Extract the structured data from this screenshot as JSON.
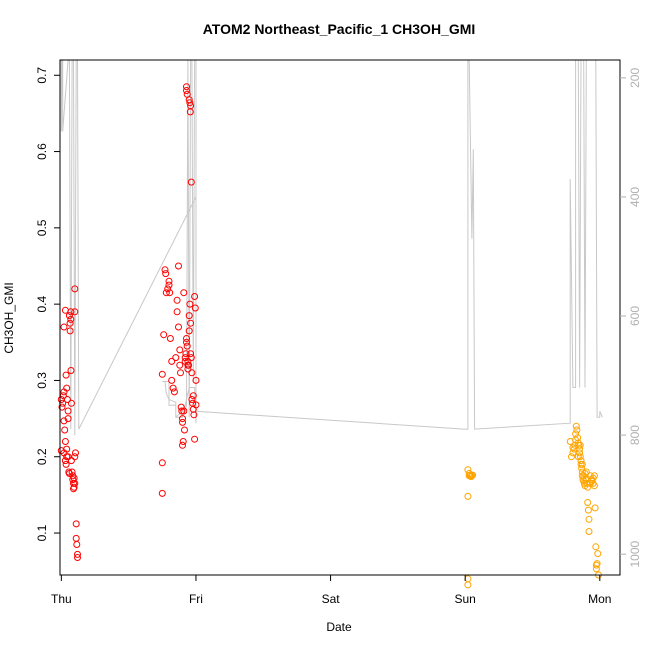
{
  "chart_data": {
    "type": "scatter",
    "title": "ATOM2 Northeast_Pacific_1 CH3OH_GMI",
    "xlabel": "Date",
    "ylabel": "CH3OH_GMI",
    "x_ticks": [
      "Thu",
      "Fri",
      "Sat",
      "Sun",
      "Mon"
    ],
    "y_ticks": [
      "0.1",
      "0.2",
      "0.3",
      "0.4",
      "0.5",
      "0.6",
      "0.7"
    ],
    "y_right_ticks": [
      "200",
      "400",
      "600",
      "800",
      "1000"
    ],
    "xlim": [
      -0.01,
      4.15
    ],
    "ylim": [
      0.045,
      0.72
    ],
    "y_right_lim": [
      1035,
      170
    ],
    "y_right_reversed": true,
    "colors": {
      "series_red": "#ff0000",
      "series_orange": "#ffa500",
      "pressure_line": "#c8c8c8",
      "axis": "#000000",
      "right_axis": "#b0b0b0"
    },
    "series": [
      {
        "color": "series_red",
        "points": [
          [
            0.0,
            0.275
          ],
          [
            0.01,
            0.27
          ],
          [
            0.02,
            0.285
          ],
          [
            0.005,
            0.265
          ],
          [
            0.015,
            0.28
          ],
          [
            0.0,
            0.208
          ],
          [
            0.02,
            0.205
          ],
          [
            0.02,
            0.247
          ],
          [
            0.025,
            0.235
          ],
          [
            0.03,
            0.22
          ],
          [
            0.03,
            0.195
          ],
          [
            0.035,
            0.19
          ],
          [
            0.04,
            0.2
          ],
          [
            0.04,
            0.21
          ],
          [
            0.02,
            0.37
          ],
          [
            0.03,
            0.392
          ],
          [
            0.035,
            0.307
          ],
          [
            0.04,
            0.29
          ],
          [
            0.045,
            0.275
          ],
          [
            0.05,
            0.26
          ],
          [
            0.05,
            0.25
          ],
          [
            0.05,
            0.2
          ],
          [
            0.055,
            0.18
          ],
          [
            0.06,
            0.178
          ],
          [
            0.06,
            0.385
          ],
          [
            0.065,
            0.375
          ],
          [
            0.065,
            0.365
          ],
          [
            0.07,
            0.38
          ],
          [
            0.07,
            0.39
          ],
          [
            0.072,
            0.313
          ],
          [
            0.075,
            0.27
          ],
          [
            0.075,
            0.195
          ],
          [
            0.08,
            0.18
          ],
          [
            0.085,
            0.175
          ],
          [
            0.085,
            0.17
          ],
          [
            0.09,
            0.165
          ],
          [
            0.09,
            0.158
          ],
          [
            0.095,
            0.172
          ],
          [
            0.1,
            0.165
          ],
          [
            0.1,
            0.2
          ],
          [
            0.105,
            0.205
          ],
          [
            0.1,
            0.39
          ],
          [
            0.1,
            0.42
          ],
          [
            0.11,
            0.112
          ],
          [
            0.11,
            0.093
          ],
          [
            0.115,
            0.085
          ],
          [
            0.12,
            0.072
          ],
          [
            0.12,
            0.068
          ],
          [
            0.095,
            0.16
          ],
          [
            0.75,
            0.308
          ],
          [
            0.75,
            0.192
          ],
          [
            0.75,
            0.152
          ],
          [
            0.76,
            0.36
          ],
          [
            0.77,
            0.445
          ],
          [
            0.775,
            0.44
          ],
          [
            0.78,
            0.415
          ],
          [
            0.79,
            0.42
          ],
          [
            0.8,
            0.43
          ],
          [
            0.8,
            0.425
          ],
          [
            0.805,
            0.415
          ],
          [
            0.81,
            0.355
          ],
          [
            0.82,
            0.325
          ],
          [
            0.82,
            0.3
          ],
          [
            0.83,
            0.29
          ],
          [
            0.84,
            0.285
          ],
          [
            0.85,
            0.33
          ],
          [
            0.86,
            0.405
          ],
          [
            0.86,
            0.39
          ],
          [
            0.87,
            0.45
          ],
          [
            0.87,
            0.37
          ],
          [
            0.88,
            0.34
          ],
          [
            0.88,
            0.32
          ],
          [
            0.885,
            0.31
          ],
          [
            0.89,
            0.265
          ],
          [
            0.895,
            0.26
          ],
          [
            0.9,
            0.25
          ],
          [
            0.9,
            0.245
          ],
          [
            0.9,
            0.215
          ],
          [
            0.905,
            0.22
          ],
          [
            0.91,
            0.415
          ],
          [
            0.91,
            0.26
          ],
          [
            0.915,
            0.235
          ],
          [
            0.92,
            0.33
          ],
          [
            0.92,
            0.325
          ],
          [
            0.925,
            0.335
          ],
          [
            0.93,
            0.355
          ],
          [
            0.93,
            0.35
          ],
          [
            0.935,
            0.345
          ],
          [
            0.94,
            0.32
          ],
          [
            0.94,
            0.315
          ],
          [
            0.945,
            0.32
          ],
          [
            0.95,
            0.365
          ],
          [
            0.95,
            0.385
          ],
          [
            0.955,
            0.4
          ],
          [
            0.96,
            0.375
          ],
          [
            0.96,
            0.335
          ],
          [
            0.965,
            0.33
          ],
          [
            0.97,
            0.31
          ],
          [
            0.97,
            0.275
          ],
          [
            0.975,
            0.27
          ],
          [
            0.98,
            0.28
          ],
          [
            0.98,
            0.262
          ],
          [
            0.985,
            0.255
          ],
          [
            0.99,
            0.223
          ],
          [
            0.99,
            0.41
          ],
          [
            0.995,
            0.395
          ],
          [
            1.0,
            0.3
          ],
          [
            1.0,
            0.268
          ],
          [
            0.93,
            0.685
          ],
          [
            0.93,
            0.68
          ],
          [
            0.935,
            0.675
          ],
          [
            0.95,
            0.668
          ],
          [
            0.955,
            0.664
          ],
          [
            0.96,
            0.66
          ],
          [
            0.958,
            0.652
          ],
          [
            0.965,
            0.56
          ],
          [
            0.94,
            0.325
          ]
        ]
      },
      {
        "color": "series_orange",
        "points": [
          [
            3.02,
            0.183
          ],
          [
            3.03,
            0.178
          ],
          [
            3.035,
            0.175
          ],
          [
            3.04,
            0.176
          ],
          [
            3.045,
            0.174
          ],
          [
            3.05,
            0.175
          ],
          [
            3.055,
            0.176
          ],
          [
            3.03,
            0.175
          ],
          [
            3.035,
            0.176
          ],
          [
            3.02,
            0.148
          ],
          [
            3.02,
            0.04
          ],
          [
            3.02,
            0.032
          ],
          [
            3.78,
            0.22
          ],
          [
            3.79,
            0.2
          ],
          [
            3.8,
            0.205
          ],
          [
            3.81,
            0.21
          ],
          [
            3.82,
            0.222
          ],
          [
            3.82,
            0.23
          ],
          [
            3.825,
            0.24
          ],
          [
            3.83,
            0.235
          ],
          [
            3.835,
            0.225
          ],
          [
            3.84,
            0.218
          ],
          [
            3.845,
            0.215
          ],
          [
            3.85,
            0.21
          ],
          [
            3.855,
            0.2
          ],
          [
            3.86,
            0.195
          ],
          [
            3.86,
            0.19
          ],
          [
            3.865,
            0.185
          ],
          [
            3.87,
            0.18
          ],
          [
            3.87,
            0.175
          ],
          [
            3.875,
            0.17
          ],
          [
            3.88,
            0.175
          ],
          [
            3.88,
            0.168
          ],
          [
            3.885,
            0.165
          ],
          [
            3.89,
            0.178
          ],
          [
            3.89,
            0.162
          ],
          [
            3.895,
            0.17
          ],
          [
            3.9,
            0.172
          ],
          [
            3.9,
            0.18
          ],
          [
            3.905,
            0.165
          ],
          [
            3.91,
            0.16
          ],
          [
            3.91,
            0.14
          ],
          [
            3.915,
            0.13
          ],
          [
            3.92,
            0.118
          ],
          [
            3.92,
            0.102
          ],
          [
            3.93,
            0.175
          ],
          [
            3.93,
            0.165
          ],
          [
            3.94,
            0.17
          ],
          [
            3.94,
            0.168
          ],
          [
            3.95,
            0.172
          ],
          [
            3.95,
            0.165
          ],
          [
            3.96,
            0.175
          ],
          [
            3.96,
            0.162
          ],
          [
            3.965,
            0.133
          ],
          [
            3.97,
            0.082
          ],
          [
            3.975,
            0.058
          ],
          [
            3.975,
            0.053
          ],
          [
            3.98,
            0.06
          ],
          [
            3.985,
            0.073
          ],
          [
            3.99,
            0.045
          ],
          [
            3.8,
            0.212
          ],
          [
            3.815,
            0.215
          ],
          [
            3.84,
            0.2
          ],
          [
            3.85,
            0.205
          ],
          [
            3.855,
            0.215
          ],
          [
            3.87,
            0.19
          ]
        ]
      }
    ],
    "pressure_line": [
      [
        0.0,
        170
      ],
      [
        0.0,
        290
      ],
      [
        0.005,
        170
      ],
      [
        0.01,
        170
      ],
      [
        0.01,
        290
      ],
      [
        0.05,
        170
      ],
      [
        0.06,
        170
      ],
      [
        0.07,
        790
      ],
      [
        0.08,
        170
      ],
      [
        0.09,
        170
      ],
      [
        0.1,
        800
      ],
      [
        0.11,
        170
      ],
      [
        0.12,
        170
      ],
      [
        0.13,
        790
      ],
      [
        1.0,
        400
      ],
      [
        1.0,
        170
      ],
      [
        0.99,
        170
      ],
      [
        0.98,
        710
      ],
      [
        0.97,
        170
      ],
      [
        0.96,
        170
      ],
      [
        0.95,
        770
      ],
      [
        0.94,
        170
      ],
      [
        0.93,
        750
      ],
      [
        0.92,
        760
      ],
      [
        0.9,
        760
      ],
      [
        0.85,
        770
      ],
      [
        0.85,
        750
      ],
      [
        0.8,
        750
      ],
      [
        0.8,
        710
      ],
      [
        0.75,
        710
      ],
      [
        0.77,
        710
      ],
      [
        0.78,
        730
      ],
      [
        0.8,
        740
      ],
      [
        0.85,
        745
      ],
      [
        0.85,
        770
      ],
      [
        0.9,
        770
      ],
      [
        0.95,
        720
      ],
      [
        0.99,
        720
      ],
      [
        1.0,
        780
      ],
      [
        1.0,
        720
      ],
      [
        1.0,
        400
      ],
      [
        1.0,
        760
      ],
      [
        2.99,
        790
      ],
      [
        3.02,
        790
      ],
      [
        3.02,
        170
      ],
      [
        3.03,
        170
      ],
      [
        3.05,
        470
      ],
      [
        3.06,
        320
      ],
      [
        3.07,
        790
      ],
      [
        3.78,
        780
      ],
      [
        3.78,
        370
      ],
      [
        3.8,
        720
      ],
      [
        3.82,
        720
      ],
      [
        3.82,
        170
      ],
      [
        3.84,
        170
      ],
      [
        3.85,
        720
      ],
      [
        3.86,
        170
      ],
      [
        3.86,
        170
      ],
      [
        3.88,
        170
      ],
      [
        3.89,
        720
      ],
      [
        3.9,
        170
      ],
      [
        3.92,
        170
      ],
      [
        3.93,
        170
      ],
      [
        3.94,
        170
      ],
      [
        3.96,
        170
      ],
      [
        3.97,
        170
      ],
      [
        3.98,
        770
      ],
      [
        3.99,
        770
      ],
      [
        4.0,
        770
      ],
      [
        4.0,
        760
      ],
      [
        4.02,
        770
      ]
    ]
  }
}
